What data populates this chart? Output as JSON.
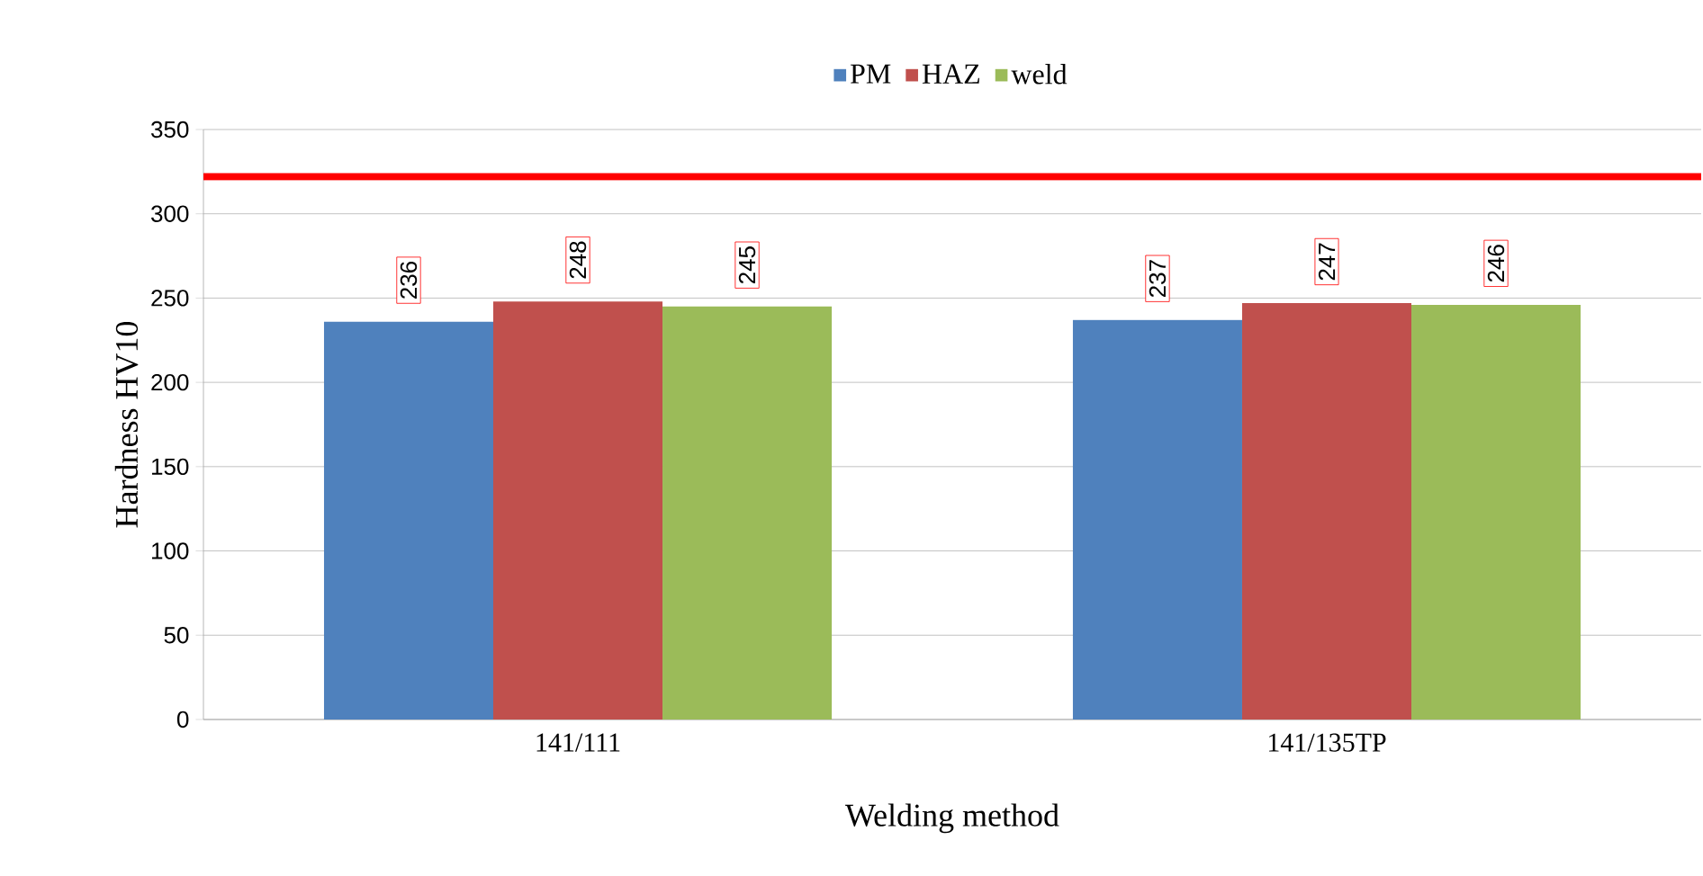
{
  "chart_data": {
    "type": "bar",
    "xlabel": "Welding method",
    "ylabel": "Hardness HV10",
    "categories": [
      "141/111",
      "141/135TP"
    ],
    "series": [
      {
        "name": "PM",
        "color": "#4f81bd",
        "values": [
          236,
          237
        ]
      },
      {
        "name": "HAZ",
        "color": "#c0504d",
        "values": [
          248,
          247
        ]
      },
      {
        "name": "weld",
        "color": "#9bbb59",
        "values": [
          245,
          246
        ]
      }
    ],
    "ylim": [
      0,
      350
    ],
    "yticks": [
      0,
      50,
      100,
      150,
      200,
      250,
      300,
      350
    ],
    "grid": "y",
    "legend": "top",
    "data_labels": true,
    "ref_lines": [
      {
        "axis": "y",
        "value": 322,
        "color": "#ff0000"
      }
    ]
  }
}
